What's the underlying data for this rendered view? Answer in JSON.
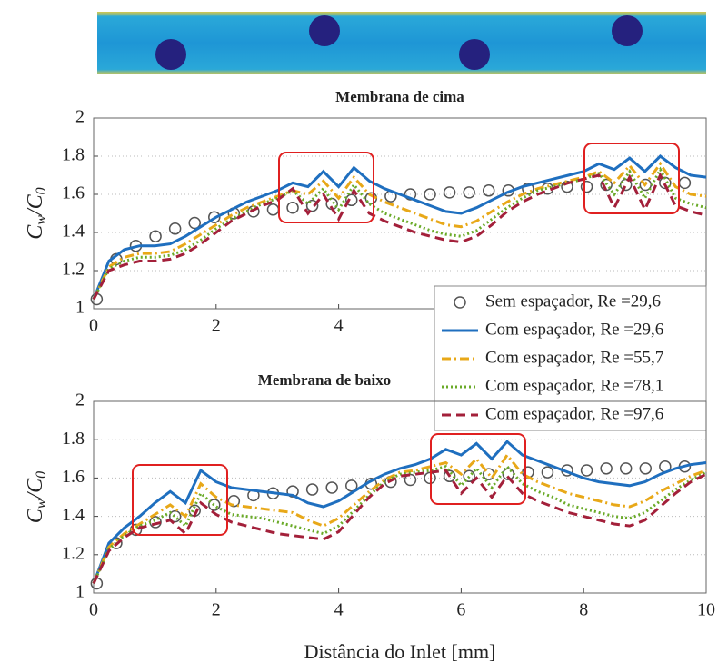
{
  "chart_data": [
    {
      "type": "line",
      "title": "Membrana de cima",
      "ylabel": [
        "C",
        "w",
        "/C",
        "0"
      ],
      "xlim": [
        0,
        10
      ],
      "ylim": [
        1,
        2
      ],
      "xticks": [
        0,
        2,
        4
      ],
      "yticks": [
        1,
        1.2,
        1.4,
        1.6,
        1.8,
        2
      ],
      "grid": true,
      "legend_loc": "lower right",
      "series": [
        {
          "name": "Sem espaçador, Re =29,6",
          "color": "#555555",
          "style": "markers",
          "x": [
            0.05,
            0.37,
            0.69,
            1.01,
            1.33,
            1.65,
            1.97,
            2.29,
            2.61,
            2.93,
            3.25,
            3.57,
            3.89,
            4.21,
            4.53,
            4.85,
            5.17,
            5.49,
            5.81,
            6.13,
            6.45,
            6.77,
            7.09,
            7.41,
            7.73,
            8.05,
            8.37,
            8.69,
            9.01,
            9.33,
            9.65
          ],
          "values": [
            1.05,
            1.26,
            1.33,
            1.38,
            1.42,
            1.45,
            1.48,
            1.5,
            1.51,
            1.52,
            1.53,
            1.54,
            1.55,
            1.57,
            1.58,
            1.59,
            1.6,
            1.6,
            1.61,
            1.61,
            1.62,
            1.62,
            1.63,
            1.63,
            1.64,
            1.64,
            1.65,
            1.65,
            1.65,
            1.66,
            1.66
          ]
        },
        {
          "name": "Com espaçador, Re =29,6",
          "color": "#1f6fbf",
          "style": "solid",
          "x": [
            0,
            0.25,
            0.5,
            0.75,
            1,
            1.25,
            1.5,
            1.75,
            2,
            2.25,
            2.5,
            2.75,
            3,
            3.25,
            3.5,
            3.75,
            4,
            4.25,
            4.5,
            4.75,
            5,
            5.25,
            5.5,
            5.75,
            6,
            6.25,
            6.5,
            6.75,
            7,
            7.25,
            7.5,
            7.75,
            8,
            8.25,
            8.5,
            8.75,
            9,
            9.25,
            9.5,
            9.75,
            10
          ],
          "values": [
            1.05,
            1.25,
            1.31,
            1.33,
            1.33,
            1.34,
            1.38,
            1.43,
            1.48,
            1.52,
            1.56,
            1.59,
            1.62,
            1.66,
            1.64,
            1.72,
            1.64,
            1.74,
            1.67,
            1.63,
            1.6,
            1.57,
            1.54,
            1.51,
            1.5,
            1.53,
            1.57,
            1.61,
            1.64,
            1.66,
            1.68,
            1.7,
            1.72,
            1.76,
            1.73,
            1.79,
            1.72,
            1.8,
            1.74,
            1.7,
            1.69
          ]
        },
        {
          "name": "Com espaçador, Re =55,7",
          "color": "#e8a818",
          "style": "dashdot",
          "x": [
            0,
            0.25,
            0.5,
            0.75,
            1,
            1.25,
            1.5,
            1.75,
            2,
            2.25,
            2.5,
            2.75,
            3,
            3.25,
            3.5,
            3.75,
            4,
            4.25,
            4.5,
            4.75,
            5,
            5.25,
            5.5,
            5.75,
            6,
            6.25,
            6.5,
            6.75,
            7,
            7.25,
            7.5,
            7.75,
            8,
            8.25,
            8.5,
            8.75,
            9,
            9.25,
            9.5,
            9.75,
            10
          ],
          "values": [
            1.05,
            1.22,
            1.27,
            1.29,
            1.29,
            1.3,
            1.34,
            1.39,
            1.44,
            1.49,
            1.53,
            1.56,
            1.59,
            1.62,
            1.6,
            1.67,
            1.58,
            1.69,
            1.6,
            1.56,
            1.53,
            1.5,
            1.47,
            1.44,
            1.43,
            1.46,
            1.51,
            1.56,
            1.6,
            1.63,
            1.65,
            1.67,
            1.69,
            1.72,
            1.66,
            1.75,
            1.65,
            1.76,
            1.64,
            1.6,
            1.59
          ]
        },
        {
          "name": "Com espaçador, Re =78,1",
          "color": "#6aaa28",
          "style": "dotted",
          "x": [
            0,
            0.25,
            0.5,
            0.75,
            1,
            1.25,
            1.5,
            1.75,
            2,
            2.25,
            2.5,
            2.75,
            3,
            3.25,
            3.5,
            3.75,
            4,
            4.25,
            4.5,
            4.75,
            5,
            5.25,
            5.5,
            5.75,
            6,
            6.25,
            6.5,
            6.75,
            7,
            7.25,
            7.5,
            7.75,
            8,
            8.25,
            8.5,
            8.75,
            9,
            9.25,
            9.5,
            9.75,
            10
          ],
          "values": [
            1.05,
            1.21,
            1.25,
            1.27,
            1.27,
            1.28,
            1.31,
            1.36,
            1.42,
            1.47,
            1.51,
            1.55,
            1.58,
            1.62,
            1.55,
            1.63,
            1.52,
            1.65,
            1.55,
            1.5,
            1.47,
            1.44,
            1.41,
            1.39,
            1.38,
            1.41,
            1.47,
            1.53,
            1.58,
            1.62,
            1.64,
            1.66,
            1.68,
            1.71,
            1.6,
            1.72,
            1.58,
            1.73,
            1.58,
            1.55,
            1.53
          ]
        },
        {
          "name": "Com espaçador, Re =97,6",
          "color": "#a3203a",
          "style": "dashed",
          "x": [
            0,
            0.25,
            0.5,
            0.75,
            1,
            1.25,
            1.5,
            1.75,
            2,
            2.25,
            2.5,
            2.75,
            3,
            3.25,
            3.5,
            3.75,
            4,
            4.25,
            4.5,
            4.75,
            5,
            5.25,
            5.5,
            5.75,
            6,
            6.25,
            6.5,
            6.75,
            7,
            7.25,
            7.5,
            7.75,
            8,
            8.25,
            8.5,
            8.75,
            9,
            9.25,
            9.5,
            9.75,
            10
          ],
          "values": [
            1.05,
            1.2,
            1.23,
            1.25,
            1.25,
            1.26,
            1.29,
            1.34,
            1.4,
            1.46,
            1.5,
            1.54,
            1.57,
            1.63,
            1.5,
            1.6,
            1.47,
            1.62,
            1.5,
            1.46,
            1.43,
            1.4,
            1.38,
            1.36,
            1.35,
            1.38,
            1.44,
            1.51,
            1.56,
            1.6,
            1.63,
            1.66,
            1.68,
            1.7,
            1.53,
            1.69,
            1.52,
            1.7,
            1.54,
            1.51,
            1.49
          ]
        }
      ]
    },
    {
      "type": "line",
      "title": "Membrana de baixo",
      "ylabel": [
        "C",
        "w",
        "/C",
        "0"
      ],
      "xlabel": "Distância do Inlet [mm]",
      "xlim": [
        0,
        10
      ],
      "ylim": [
        1,
        2
      ],
      "xticks": [
        0,
        2,
        4,
        6,
        8,
        10
      ],
      "yticks": [
        1,
        1.2,
        1.4,
        1.6,
        1.8,
        2
      ],
      "grid": true,
      "series": [
        {
          "color": "#555555",
          "style": "markers",
          "x": [
            0.05,
            0.37,
            0.69,
            1.01,
            1.33,
            1.65,
            1.97,
            2.29,
            2.61,
            2.93,
            3.25,
            3.57,
            3.89,
            4.21,
            4.53,
            4.85,
            5.17,
            5.49,
            5.81,
            6.13,
            6.45,
            6.77,
            7.09,
            7.41,
            7.73,
            8.05,
            8.37,
            8.69,
            9.01,
            9.33,
            9.65
          ],
          "values": [
            1.05,
            1.26,
            1.33,
            1.37,
            1.4,
            1.43,
            1.46,
            1.48,
            1.51,
            1.52,
            1.53,
            1.54,
            1.55,
            1.56,
            1.57,
            1.58,
            1.59,
            1.6,
            1.61,
            1.61,
            1.62,
            1.62,
            1.63,
            1.63,
            1.64,
            1.64,
            1.65,
            1.65,
            1.65,
            1.66,
            1.66
          ]
        },
        {
          "color": "#1f6fbf",
          "style": "solid",
          "x": [
            0,
            0.25,
            0.5,
            0.75,
            1,
            1.25,
            1.5,
            1.75,
            2,
            2.25,
            2.5,
            2.75,
            3,
            3.25,
            3.5,
            3.75,
            4,
            4.25,
            4.5,
            4.75,
            5,
            5.25,
            5.5,
            5.75,
            6,
            6.25,
            6.5,
            6.75,
            7,
            7.25,
            7.5,
            7.75,
            8,
            8.25,
            8.5,
            8.75,
            9,
            9.25,
            9.5,
            9.75,
            10
          ],
          "values": [
            1.05,
            1.26,
            1.34,
            1.4,
            1.47,
            1.53,
            1.47,
            1.64,
            1.58,
            1.55,
            1.54,
            1.53,
            1.52,
            1.51,
            1.47,
            1.45,
            1.48,
            1.53,
            1.58,
            1.62,
            1.65,
            1.67,
            1.7,
            1.75,
            1.72,
            1.78,
            1.7,
            1.79,
            1.72,
            1.69,
            1.66,
            1.63,
            1.6,
            1.58,
            1.57,
            1.56,
            1.58,
            1.62,
            1.65,
            1.67,
            1.68
          ]
        },
        {
          "color": "#e8a818",
          "style": "dashdot",
          "x": [
            0,
            0.25,
            0.5,
            0.75,
            1,
            1.25,
            1.5,
            1.75,
            2,
            2.25,
            2.5,
            2.75,
            3,
            3.25,
            3.5,
            3.75,
            4,
            4.25,
            4.5,
            4.75,
            5,
            5.25,
            5.5,
            5.75,
            6,
            6.25,
            6.5,
            6.75,
            7,
            7.25,
            7.5,
            7.75,
            8,
            8.25,
            8.5,
            8.75,
            9,
            9.25,
            9.5,
            9.75,
            10
          ],
          "values": [
            1.05,
            1.24,
            1.31,
            1.36,
            1.41,
            1.46,
            1.4,
            1.57,
            1.5,
            1.46,
            1.45,
            1.44,
            1.43,
            1.42,
            1.38,
            1.35,
            1.39,
            1.46,
            1.53,
            1.59,
            1.63,
            1.64,
            1.66,
            1.68,
            1.62,
            1.7,
            1.6,
            1.72,
            1.62,
            1.58,
            1.55,
            1.52,
            1.5,
            1.48,
            1.46,
            1.45,
            1.48,
            1.53,
            1.57,
            1.61,
            1.64
          ]
        },
        {
          "color": "#6aaa28",
          "style": "dotted",
          "x": [
            0,
            0.25,
            0.5,
            0.75,
            1,
            1.25,
            1.5,
            1.75,
            2,
            2.25,
            2.5,
            2.75,
            3,
            3.25,
            3.5,
            3.75,
            4,
            4.25,
            4.5,
            4.75,
            5,
            5.25,
            5.5,
            5.75,
            6,
            6.25,
            6.5,
            6.75,
            7,
            7.25,
            7.5,
            7.75,
            8,
            8.25,
            8.5,
            8.75,
            9,
            9.25,
            9.5,
            9.75,
            10
          ],
          "values": [
            1.05,
            1.23,
            1.3,
            1.35,
            1.38,
            1.42,
            1.35,
            1.52,
            1.45,
            1.41,
            1.4,
            1.39,
            1.37,
            1.35,
            1.33,
            1.31,
            1.35,
            1.43,
            1.51,
            1.58,
            1.62,
            1.63,
            1.64,
            1.66,
            1.56,
            1.65,
            1.55,
            1.66,
            1.57,
            1.53,
            1.5,
            1.46,
            1.44,
            1.42,
            1.4,
            1.39,
            1.42,
            1.48,
            1.54,
            1.59,
            1.63
          ]
        },
        {
          "color": "#a3203a",
          "style": "dashed",
          "x": [
            0,
            0.25,
            0.5,
            0.75,
            1,
            1.25,
            1.5,
            1.75,
            2,
            2.25,
            2.5,
            2.75,
            3,
            3.25,
            3.5,
            3.75,
            4,
            4.25,
            4.5,
            4.75,
            5,
            5.25,
            5.5,
            5.75,
            6,
            6.25,
            6.5,
            6.75,
            7,
            7.25,
            7.5,
            7.75,
            8,
            8.25,
            8.5,
            8.75,
            9,
            9.25,
            9.5,
            9.75,
            10
          ],
          "values": [
            1.05,
            1.22,
            1.29,
            1.34,
            1.36,
            1.38,
            1.31,
            1.47,
            1.41,
            1.37,
            1.35,
            1.33,
            1.31,
            1.3,
            1.29,
            1.28,
            1.32,
            1.41,
            1.5,
            1.57,
            1.61,
            1.62,
            1.63,
            1.64,
            1.52,
            1.6,
            1.5,
            1.61,
            1.52,
            1.48,
            1.45,
            1.42,
            1.4,
            1.38,
            1.36,
            1.35,
            1.38,
            1.45,
            1.52,
            1.58,
            1.62
          ]
        }
      ]
    }
  ]
}
